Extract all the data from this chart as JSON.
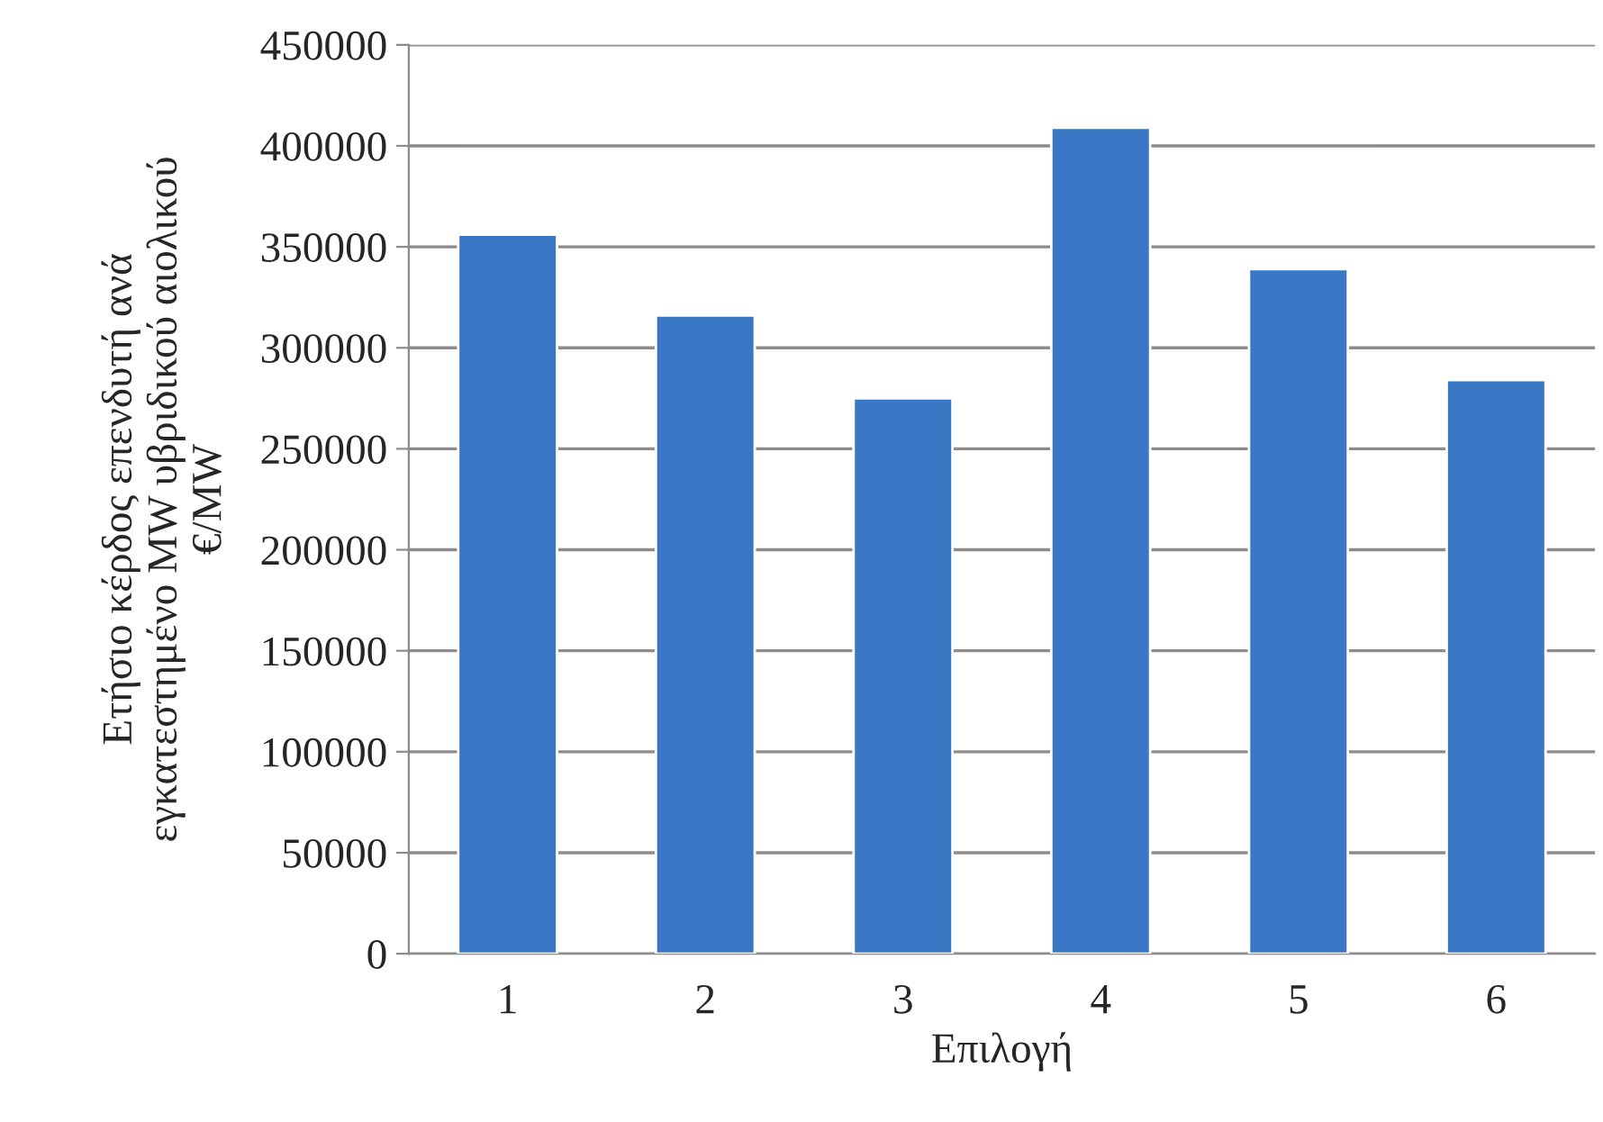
{
  "chart_data": {
    "type": "bar",
    "xlabel": "Επιλογή",
    "ylabel": "Ετήσιο κέρδος επενδυτή ανά\nεγκατεστημένο MW υβριδικού αιολικού\n€/MW",
    "categories": [
      "1",
      "2",
      "3",
      "4",
      "5",
      "6"
    ],
    "values": [
      356000,
      316000,
      275000,
      409000,
      339000,
      284000
    ],
    "color": "#3a78c6",
    "ylim": [
      0,
      450000
    ],
    "yticks": [
      0,
      50000,
      100000,
      150000,
      200000,
      250000,
      300000,
      350000,
      400000,
      450000
    ],
    "grid": "y",
    "legend": false
  }
}
